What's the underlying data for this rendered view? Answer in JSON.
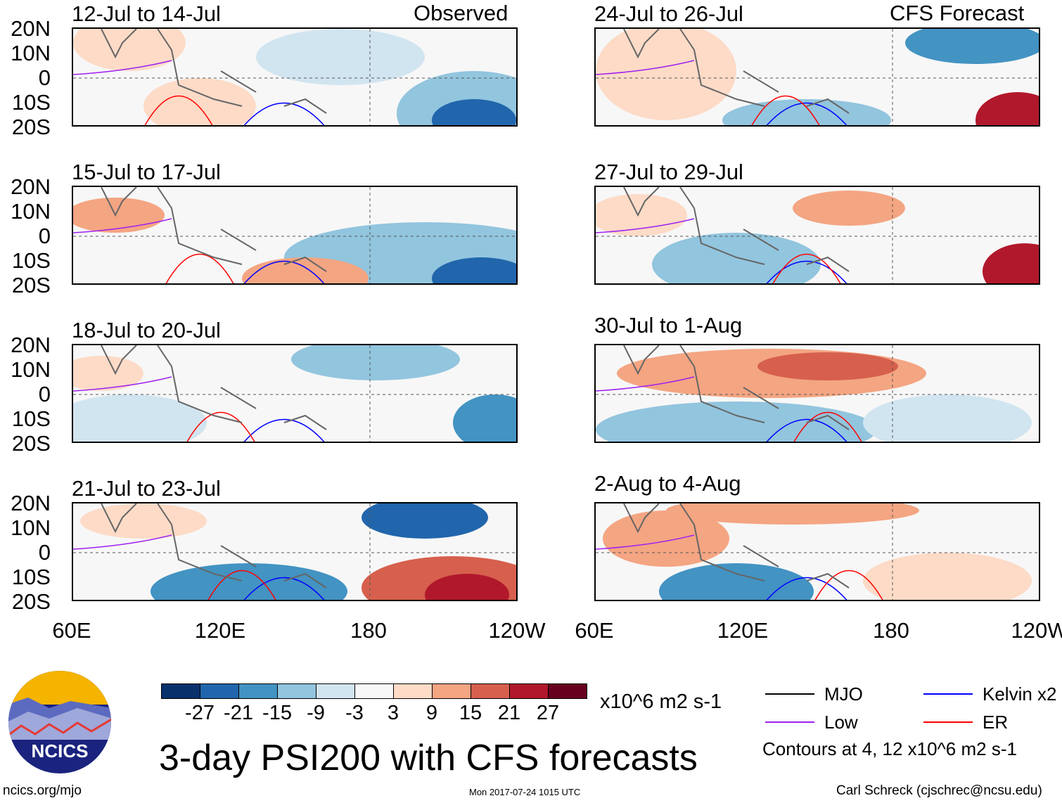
{
  "header": {
    "observed_label": "Observed",
    "forecast_label": "CFS Forecast"
  },
  "lat_labels": [
    "20N",
    "10N",
    "0",
    "10S",
    "20S"
  ],
  "lon_labels": [
    "60E",
    "120E",
    "180",
    "120W"
  ],
  "panels": [
    {
      "title": "12-Jul to 14-Jul",
      "col": 0,
      "row": 0
    },
    {
      "title": "15-Jul to 17-Jul",
      "col": 0,
      "row": 1
    },
    {
      "title": "18-Jul to 20-Jul",
      "col": 0,
      "row": 2
    },
    {
      "title": "21-Jul to 23-Jul",
      "col": 0,
      "row": 3
    },
    {
      "title": "24-Jul to 26-Jul",
      "col": 1,
      "row": 0
    },
    {
      "title": "27-Jul to 29-Jul",
      "col": 1,
      "row": 1
    },
    {
      "title": "30-Jul to 1-Aug",
      "col": 1,
      "row": 2
    },
    {
      "title": "2-Aug to 4-Aug",
      "col": 1,
      "row": 3
    }
  ],
  "colorbar": {
    "colors": [
      "#08306b",
      "#2166ac",
      "#4393c3",
      "#92c5de",
      "#d1e5f0",
      "#f7f7f7",
      "#fddbc7",
      "#f4a582",
      "#d6604d",
      "#b2182b",
      "#67001f"
    ],
    "labels": [
      "-27",
      "-21",
      "-15",
      "-9",
      "-3",
      "3",
      "9",
      "15",
      "21",
      "27"
    ],
    "units": "x10^6 m2 s-1"
  },
  "legend": {
    "items": [
      {
        "label": "MJO",
        "color": "#000000"
      },
      {
        "label": "Kelvin x2",
        "color": "#0000ff"
      },
      {
        "label": "Low",
        "color": "#a020f0"
      },
      {
        "label": "ER",
        "color": "#ff0000"
      }
    ],
    "note": "Contours at 4, 12 x10^6 m2 s-1"
  },
  "footer": {
    "main_title": "3-day PSI200 with CFS forecasts",
    "logo_text": "NCICS",
    "url": "ncics.org/mjo",
    "timestamp": "Mon 2017-07-24 1015 UTC",
    "credit": "Carl Schreck (cjschrec@ncsu.edu)"
  }
}
